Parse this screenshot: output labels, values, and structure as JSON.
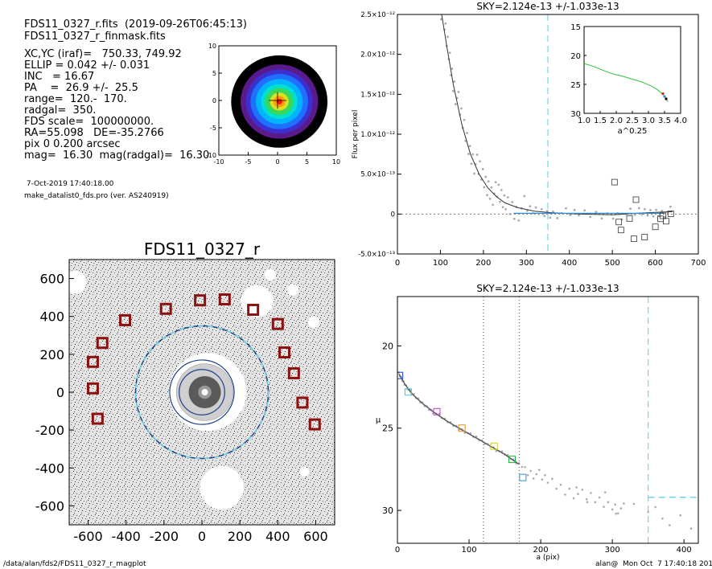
{
  "header": {
    "line1": "FDS11_0327_r.fits  (2019-09-26T06:45:13)",
    "line2": "FDS11_0327_r_finmask.fits",
    "params": [
      "XC,YC (iraf)=   750.33, 749.92",
      "ELLIP = 0.042 +/- 0.031",
      "INC   = 16.67",
      "PA    =  26.9 +/-  25.5",
      "range=  120.-  170.",
      "radgal=  350.",
      "FDS scale=  100000000.",
      "RA=55.098   DE=-35.2766",
      "pix 0 0.200 arcsec",
      "mag=  16.30  mag(radgal)=  16.30"
    ],
    "date": " 7-Oct-2019 17:40:18.00",
    "program": "make_datalist0_fds.pro (ver. AS240919)"
  },
  "footer": {
    "path": "/data/alan/fds2/FDS11_0327_r_magplot",
    "user": "alan@  Mon Oct  7 17:40:18 2019"
  },
  "chart_data": [
    {
      "id": "contour",
      "type": "heatmap",
      "xlim": [
        -10,
        10
      ],
      "ylim": [
        -10,
        10
      ],
      "xticks": [
        -10,
        -5,
        0,
        5,
        10
      ],
      "yticks": [
        -10,
        -5,
        0,
        5,
        10
      ],
      "levels": [
        {
          "r": 8.2,
          "color": "#000000"
        },
        {
          "r": 6.6,
          "color": "#5a1a8a"
        },
        {
          "r": 5.7,
          "color": "#3b2fd0"
        },
        {
          "r": 4.9,
          "color": "#1f70ff"
        },
        {
          "r": 4.0,
          "color": "#00b4ff"
        },
        {
          "r": 3.1,
          "color": "#00e0d0"
        },
        {
          "r": 2.4,
          "color": "#3ad65a"
        },
        {
          "r": 1.6,
          "color": "#d8e020"
        },
        {
          "r": 1.0,
          "color": "#ff9a10"
        },
        {
          "r": 0.5,
          "color": "#ff1a10"
        }
      ]
    },
    {
      "id": "image",
      "type": "scatter",
      "title": "FDS11_0327_r",
      "xlim": [
        -700,
        700
      ],
      "ylim": [
        -700,
        700
      ],
      "xticks": [
        -600,
        -400,
        -200,
        0,
        200,
        400,
        600
      ],
      "yticks": [
        -600,
        -400,
        -200,
        0,
        200,
        400,
        600
      ],
      "outer_circle_radius": 350,
      "inner_circle_radii": [
        170,
        120
      ],
      "box_color": "#8b1010",
      "boxes": [
        [
          -190,
          440
        ],
        [
          -10,
          485
        ],
        [
          120,
          490
        ],
        [
          270,
          435
        ],
        [
          -405,
          380
        ],
        [
          400,
          360
        ],
        [
          -525,
          260
        ],
        [
          435,
          210
        ],
        [
          -575,
          160
        ],
        [
          485,
          100
        ],
        [
          -575,
          20
        ],
        [
          530,
          -55
        ],
        [
          -550,
          -140
        ],
        [
          595,
          -170
        ]
      ],
      "holes": [
        {
          "x": 30,
          "y": 1.0,
          "r": 205
        },
        {
          "x": 290,
          "y": 480,
          "r": 85
        },
        {
          "x": -670,
          "y": 580,
          "r": 60
        },
        {
          "x": 480,
          "y": 540,
          "r": 30
        },
        {
          "x": 360,
          "y": 620,
          "r": 30
        },
        {
          "x": 105,
          "y": -505,
          "r": 115
        },
        {
          "x": 590,
          "y": 370,
          "r": 30
        },
        {
          "x": 540,
          "y": -420,
          "r": 25
        }
      ]
    },
    {
      "id": "flux",
      "type": "scatter",
      "title": "SKY=2.124e-13 +/-1.033e-13",
      "ylabel": "Flux per pixel",
      "xlim": [
        0,
        700
      ],
      "ylim": [
        -5e-13,
        2.5e-12
      ],
      "xticks": [
        0,
        100,
        200,
        300,
        400,
        500,
        600,
        700
      ],
      "yticks": [
        -5e-13,
        0,
        5e-13,
        1e-12,
        1.5e-12,
        2e-12,
        2.5e-12
      ],
      "ytick_labels": [
        "-5.0×10⁻¹³",
        "0",
        "5.0×10⁻¹³",
        "1.0×10⁻¹²",
        "1.5×10⁻¹²",
        "2.0×10⁻¹²",
        "2.5×10⁻¹²"
      ],
      "vline_x": 350,
      "profile": [
        [
          100,
          2.6e-12
        ],
        [
          115,
          2.1e-12
        ],
        [
          130,
          1.62e-12
        ],
        [
          150,
          1.12e-12
        ],
        [
          170,
          7.5e-13
        ],
        [
          190,
          5e-13
        ],
        [
          210,
          3.3e-13
        ],
        [
          230,
          2.2e-13
        ],
        [
          250,
          1.4e-13
        ],
        [
          280,
          8e-14
        ],
        [
          320,
          3.5e-14
        ],
        [
          360,
          1.5e-14
        ],
        [
          420,
          0
        ],
        [
          500,
          -1e-14
        ],
        [
          560,
          1e-14
        ],
        [
          600,
          2e-14
        ],
        [
          640,
          3e-14
        ]
      ],
      "squares": [
        [
          505,
          4e-13
        ],
        [
          555,
          1.8e-13
        ],
        [
          515,
          -1e-13
        ],
        [
          540,
          -5.5e-14
        ],
        [
          550,
          -3.1e-13
        ],
        [
          575,
          -2.9e-13
        ],
        [
          600,
          -1.6e-13
        ],
        [
          618,
          -2.2e-14
        ],
        [
          612,
          -6e-14
        ],
        [
          625,
          -9e-14
        ],
        [
          636,
          3e-15
        ],
        [
          520,
          -2e-13
        ]
      ]
    },
    {
      "id": "inset",
      "type": "line",
      "xlabel": "a^0.25",
      "xlim": [
        1.0,
        4.0
      ],
      "ylim": [
        15,
        30
      ],
      "xticks": [
        1.0,
        1.5,
        2.0,
        2.5,
        3.0,
        3.5,
        4.0
      ],
      "xtick_labels": [
        "1.0",
        "1.5",
        "2.0",
        "2.5",
        "3.0",
        "3.5",
        "4.0"
      ],
      "yticks": [
        15,
        20,
        25,
        30
      ],
      "x": [
        1.0,
        1.3,
        1.6,
        1.9,
        2.2,
        2.5,
        2.8,
        3.1,
        3.3,
        3.5,
        3.6
      ],
      "values": [
        21.4,
        21.9,
        22.6,
        23.2,
        23.6,
        24.1,
        24.6,
        25.3,
        26.0,
        27.0,
        28.0
      ]
    },
    {
      "id": "mu",
      "type": "scatter",
      "title": "SKY=2.124e-13 +/-1.033e-13",
      "xlabel": "a (pix)",
      "ylabel": "μ",
      "xlim": [
        0,
        420
      ],
      "ylim": [
        32,
        17
      ],
      "xticks": [
        0,
        100,
        200,
        300,
        400
      ],
      "yticks": [
        20,
        25,
        30
      ],
      "vlines_dotted": [
        120,
        170
      ],
      "vline_dashed": 350,
      "sky_level": 29.2,
      "profile": [
        [
          2,
          21.7
        ],
        [
          10,
          22.3
        ],
        [
          20,
          22.9
        ],
        [
          35,
          23.5
        ],
        [
          50,
          24.0
        ],
        [
          70,
          24.6
        ],
        [
          90,
          25.1
        ],
        [
          110,
          25.6
        ],
        [
          130,
          26.1
        ],
        [
          150,
          26.6
        ],
        [
          170,
          27.2
        ],
        [
          190,
          27.7
        ],
        [
          210,
          28.2
        ],
        [
          240,
          28.8
        ],
        [
          270,
          29.3
        ],
        [
          300,
          29.7
        ],
        [
          320,
          30.0
        ]
      ],
      "markers": [
        {
          "x": 3,
          "y": 21.8,
          "color": "#1f3fd0"
        },
        {
          "x": 15,
          "y": 22.8,
          "color": "#30d0d0"
        },
        {
          "x": 55,
          "y": 24.0,
          "color": "#c040c0"
        },
        {
          "x": 90,
          "y": 25.0,
          "color": "#e09020"
        },
        {
          "x": 135,
          "y": 26.1,
          "color": "#d0d020"
        },
        {
          "x": 160,
          "y": 26.9,
          "color": "#20b040"
        },
        {
          "x": 175,
          "y": 28.0,
          "color": "#3090e0"
        }
      ]
    }
  ]
}
